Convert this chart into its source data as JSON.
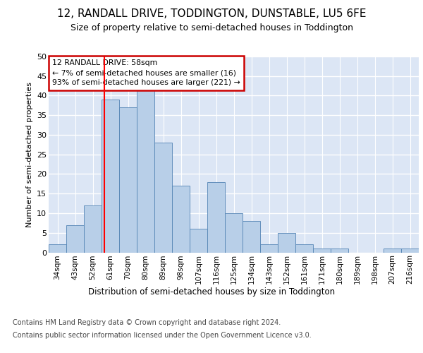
{
  "title": "12, RANDALL DRIVE, TODDINGTON, DUNSTABLE, LU5 6FE",
  "subtitle": "Size of property relative to semi-detached houses in Toddington",
  "xlabel": "Distribution of semi-detached houses by size in Toddington",
  "ylabel": "Number of semi-detached properties",
  "categories": [
    "34sqm",
    "43sqm",
    "52sqm",
    "61sqm",
    "70sqm",
    "80sqm",
    "89sqm",
    "98sqm",
    "107sqm",
    "116sqm",
    "125sqm",
    "134sqm",
    "143sqm",
    "152sqm",
    "161sqm",
    "171sqm",
    "180sqm",
    "189sqm",
    "198sqm",
    "207sqm",
    "216sqm"
  ],
  "values": [
    2,
    7,
    12,
    39,
    37,
    42,
    28,
    17,
    6,
    18,
    10,
    8,
    2,
    5,
    2,
    1,
    1,
    0,
    0,
    1,
    1
  ],
  "bar_color": "#b8cfe8",
  "bar_edge_color": "#5585b5",
  "background_color": "#dce6f5",
  "grid_color": "#ffffff",
  "annotation_box_text": "12 RANDALL DRIVE: 58sqm\n← 7% of semi-detached houses are smaller (16)\n93% of semi-detached houses are larger (221) →",
  "annotation_box_color": "#cc0000",
  "red_line_x": 2.67,
  "ylim": [
    0,
    50
  ],
  "yticks": [
    0,
    5,
    10,
    15,
    20,
    25,
    30,
    35,
    40,
    45,
    50
  ],
  "footer_line1": "Contains HM Land Registry data © Crown copyright and database right 2024.",
  "footer_line2": "Contains public sector information licensed under the Open Government Licence v3.0."
}
